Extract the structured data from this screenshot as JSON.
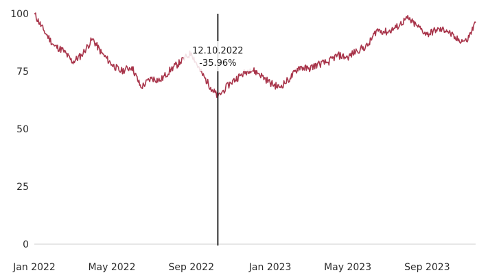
{
  "chart_data": {
    "type": "line",
    "title": "",
    "xlabel": "",
    "ylabel": "",
    "ylim": [
      0,
      100
    ],
    "yticks": [
      0,
      25,
      50,
      75,
      100
    ],
    "xticks": [
      "Jan 2022",
      "May 2022",
      "Sep 2022",
      "Jan 2023",
      "May 2023",
      "Sep 2023"
    ],
    "xticks_dates": [
      "2022-01-01",
      "2022-05-01",
      "2022-09-01",
      "2023-01-01",
      "2023-05-01",
      "2023-09-01"
    ],
    "x_range": [
      "2022-01-01",
      "2023-11-15"
    ],
    "grid": false,
    "colors": {
      "line": "#a8344a",
      "cursor": "#2b2b2b",
      "axis": "#cfcfcf"
    },
    "cursor": {
      "date": "2022-10-12",
      "label_date": "12.10.2022",
      "label_value": "-35.96%"
    },
    "series": [
      {
        "x": [
          "2022-01-01",
          "2022-01-15",
          "2022-02-01",
          "2022-02-15",
          "2022-03-01",
          "2022-03-15",
          "2022-04-01",
          "2022-04-15",
          "2022-05-01",
          "2022-05-15",
          "2022-06-01",
          "2022-06-15",
          "2022-07-01",
          "2022-07-15",
          "2022-08-01",
          "2022-08-15",
          "2022-09-01",
          "2022-09-15",
          "2022-10-01",
          "2022-10-12",
          "2022-11-01",
          "2022-11-15",
          "2022-12-01",
          "2022-12-15",
          "2023-01-01",
          "2023-01-15",
          "2023-02-01",
          "2023-02-15",
          "2023-03-01",
          "2023-03-15",
          "2023-04-01",
          "2023-04-15",
          "2023-05-01",
          "2023-05-15",
          "2023-06-01",
          "2023-06-15",
          "2023-07-01",
          "2023-07-15",
          "2023-08-01",
          "2023-08-15",
          "2023-09-01",
          "2023-09-15",
          "2023-10-01",
          "2023-10-15",
          "2023-11-01",
          "2023-11-15"
        ],
        "y": [
          100,
          93,
          86,
          84,
          79,
          82,
          89,
          83,
          78,
          75,
          77,
          68,
          72,
          71,
          76,
          79,
          83,
          75,
          68,
          64,
          70,
          73,
          76,
          74,
          70,
          68,
          72,
          77,
          76,
          78,
          79,
          82,
          81,
          84,
          86,
          93,
          92,
          94,
          98,
          95,
          91,
          93,
          93,
          89,
          88,
          96
        ]
      }
    ]
  }
}
